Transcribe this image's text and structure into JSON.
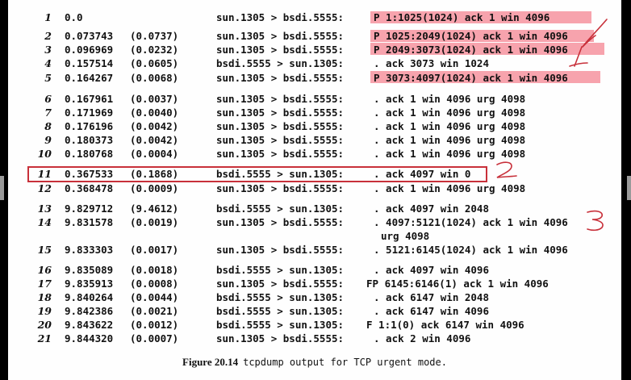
{
  "colors": {
    "highlight": "#f7a3ad",
    "ink": "#c8303a",
    "text": "#111111"
  },
  "lines": [
    {
      "n": "1",
      "t": "0.0",
      "d": "",
      "f": "sun.1305 > bsdi.5555:",
      "p": "P 1:1025(1024) ack 1 win 4096"
    },
    {
      "n": "2",
      "t": "0.073743",
      "d": "(0.0737)",
      "f": "sun.1305 > bsdi.5555:",
      "p": "P 1025:2049(1024) ack 1 win 4096"
    },
    {
      "n": "3",
      "t": "0.096969",
      "d": "(0.0232)",
      "f": "sun.1305 > bsdi.5555:",
      "p": "P 2049:3073(1024) ack 1 win 4096"
    },
    {
      "n": "4",
      "t": "0.157514",
      "d": "(0.0605)",
      "f": "bsdi.5555 > sun.1305:",
      "p": ". ack 3073 win 1024"
    },
    {
      "n": "5",
      "t": "0.164267",
      "d": "(0.0068)",
      "f": "sun.1305 > bsdi.5555:",
      "p": "P 3073:4097(1024) ack 1 win 4096"
    },
    {
      "n": "6",
      "t": "0.167961",
      "d": "(0.0037)",
      "f": "sun.1305 > bsdi.5555:",
      "p": ". ack 1 win 4096 urg 4098"
    },
    {
      "n": "7",
      "t": "0.171969",
      "d": "(0.0040)",
      "f": "sun.1305 > bsdi.5555:",
      "p": ". ack 1 win 4096 urg 4098"
    },
    {
      "n": "8",
      "t": "0.176196",
      "d": "(0.0042)",
      "f": "sun.1305 > bsdi.5555:",
      "p": ". ack 1 win 4096 urg 4098"
    },
    {
      "n": "9",
      "t": "0.180373",
      "d": "(0.0042)",
      "f": "sun.1305 > bsdi.5555:",
      "p": ". ack 1 win 4096 urg 4098"
    },
    {
      "n": "10",
      "t": "0.180768",
      "d": "(0.0004)",
      "f": "sun.1305 > bsdi.5555:",
      "p": ". ack 1 win 4096 urg 4098"
    },
    {
      "n": "11",
      "t": "0.367533",
      "d": "(0.1868)",
      "f": "bsdi.5555 > sun.1305:",
      "p": ". ack 4097 win 0"
    },
    {
      "n": "12",
      "t": "0.368478",
      "d": "(0.0009)",
      "f": "sun.1305 > bsdi.5555:",
      "p": ". ack 1 win 4096 urg 4098"
    },
    {
      "n": "13",
      "t": "9.829712",
      "d": "(9.4612)",
      "f": "bsdi.5555 > sun.1305:",
      "p": ". ack 4097 win 2048"
    },
    {
      "n": "14",
      "t": "9.831578",
      "d": "(0.0019)",
      "f": "sun.1305 > bsdi.5555:",
      "p": ". 4097:5121(1024) ack 1 win 4096"
    },
    {
      "n": "",
      "t": "",
      "d": "",
      "f": "",
      "p": "urg 4098"
    },
    {
      "n": "15",
      "t": "9.833303",
      "d": "(0.0017)",
      "f": "sun.1305 > bsdi.5555:",
      "p": ". 5121:6145(1024) ack 1 win 4096"
    },
    {
      "n": "16",
      "t": "9.835089",
      "d": "(0.0018)",
      "f": "bsdi.5555 > sun.1305:",
      "p": ". ack 4097 win 4096"
    },
    {
      "n": "17",
      "t": "9.835913",
      "d": "(0.0008)",
      "f": "sun.1305 > bsdi.5555:",
      "p": "FP 6145:6146(1) ack 1 win 4096"
    },
    {
      "n": "18",
      "t": "9.840264",
      "d": "(0.0044)",
      "f": "bsdi.5555 > sun.1305:",
      "p": ". ack 6147 win 2048"
    },
    {
      "n": "19",
      "t": "9.842386",
      "d": "(0.0021)",
      "f": "bsdi.5555 > sun.1305:",
      "p": ". ack 6147 win 4096"
    },
    {
      "n": "20",
      "t": "9.843622",
      "d": "(0.0012)",
      "f": "bsdi.5555 > sun.1305:",
      "p": "F 1:1(0) ack 6147 win 4096"
    },
    {
      "n": "21",
      "t": "9.844320",
      "d": "(0.0007)",
      "f": "sun.1305 > bsdi.5555:",
      "p": ". ack 2 win 4096"
    }
  ],
  "caption": {
    "label": "Figure 20.14",
    "text": "tcpdump output for TCP urgent mode."
  }
}
